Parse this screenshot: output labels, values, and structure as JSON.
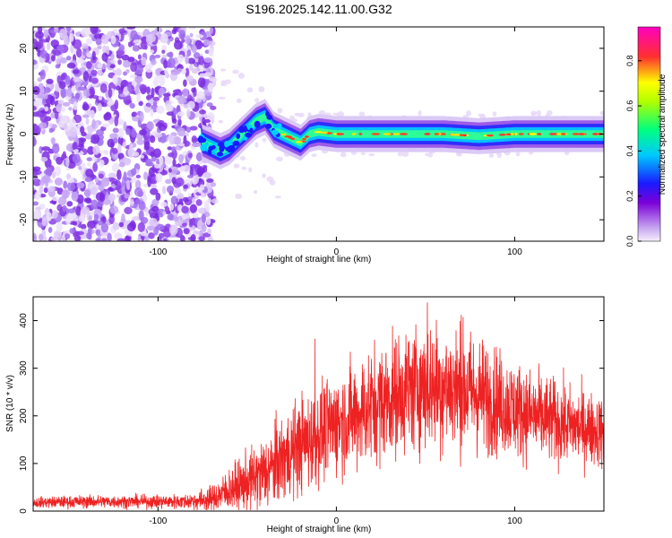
{
  "title": "S196.2025.142.11.00.G32",
  "chart_data": [
    {
      "type": "heatmap",
      "xlabel": "Height of straight line (km)",
      "ylabel": "Frequency (Hz)",
      "xlim": [
        -170,
        150
      ],
      "ylim": [
        -25,
        25
      ],
      "xticks": [
        -100,
        0,
        100
      ],
      "yticks": [
        -20,
        -10,
        0,
        10,
        20
      ],
      "colorbar": {
        "label": "Normalized spectral amplitude",
        "range": [
          0,
          0.95
        ],
        "ticks": [
          0.0,
          0.2,
          0.4,
          0.6,
          0.8
        ],
        "colormap": [
          "#e8d8f8",
          "#7a00d8",
          "#1a1aff",
          "#00c8ff",
          "#00ff80",
          "#ffff00",
          "#ff3030",
          "#ff00c0"
        ]
      },
      "ridge": {
        "description_points_x": [
          -75,
          -70,
          -65,
          -60,
          -55,
          -50,
          -45,
          -40,
          -35,
          -30,
          -25,
          -20,
          -15,
          -10,
          0,
          20,
          40,
          60,
          80,
          100,
          120,
          150
        ],
        "description_points_y": [
          -2,
          -3,
          -4,
          -3,
          -1,
          1,
          3,
          4,
          1,
          0,
          -1,
          -2,
          0,
          0.5,
          0,
          0,
          0,
          0,
          -0.5,
          0,
          0,
          0
        ]
      },
      "noise_region": [
        -170,
        -75
      ]
    },
    {
      "type": "line",
      "xlabel": "Height of straight line (km)",
      "ylabel": "SNR (10 * v/v)",
      "xlim": [
        -170,
        150
      ],
      "ylim": [
        0,
        450
      ],
      "xticks": [
        -100,
        0,
        100
      ],
      "yticks": [
        0,
        100,
        200,
        300,
        400
      ],
      "series": [
        {
          "color": "#ee2222",
          "envelope_x": [
            -170,
            -140,
            -110,
            -85,
            -70,
            -60,
            -50,
            -40,
            -30,
            -20,
            -10,
            0,
            10,
            20,
            30,
            40,
            50,
            60,
            70,
            80,
            90,
            100,
            110,
            120,
            130,
            140,
            150
          ],
          "envelope_mean": [
            18,
            20,
            20,
            20,
            25,
            45,
            60,
            80,
            110,
            140,
            160,
            185,
            200,
            220,
            240,
            255,
            265,
            262,
            255,
            245,
            230,
            215,
            200,
            190,
            180,
            175,
            165
          ],
          "envelope_spread": [
            10,
            12,
            12,
            14,
            25,
            40,
            55,
            70,
            80,
            90,
            90,
            95,
            100,
            110,
            110,
            115,
            120,
            120,
            115,
            110,
            100,
            90,
            85,
            80,
            75,
            70,
            65
          ]
        }
      ],
      "peaks": [
        {
          "x": -12,
          "y": 362
        },
        {
          "x": 51,
          "y": 438
        },
        {
          "x": 70,
          "y": 412
        }
      ]
    }
  ]
}
